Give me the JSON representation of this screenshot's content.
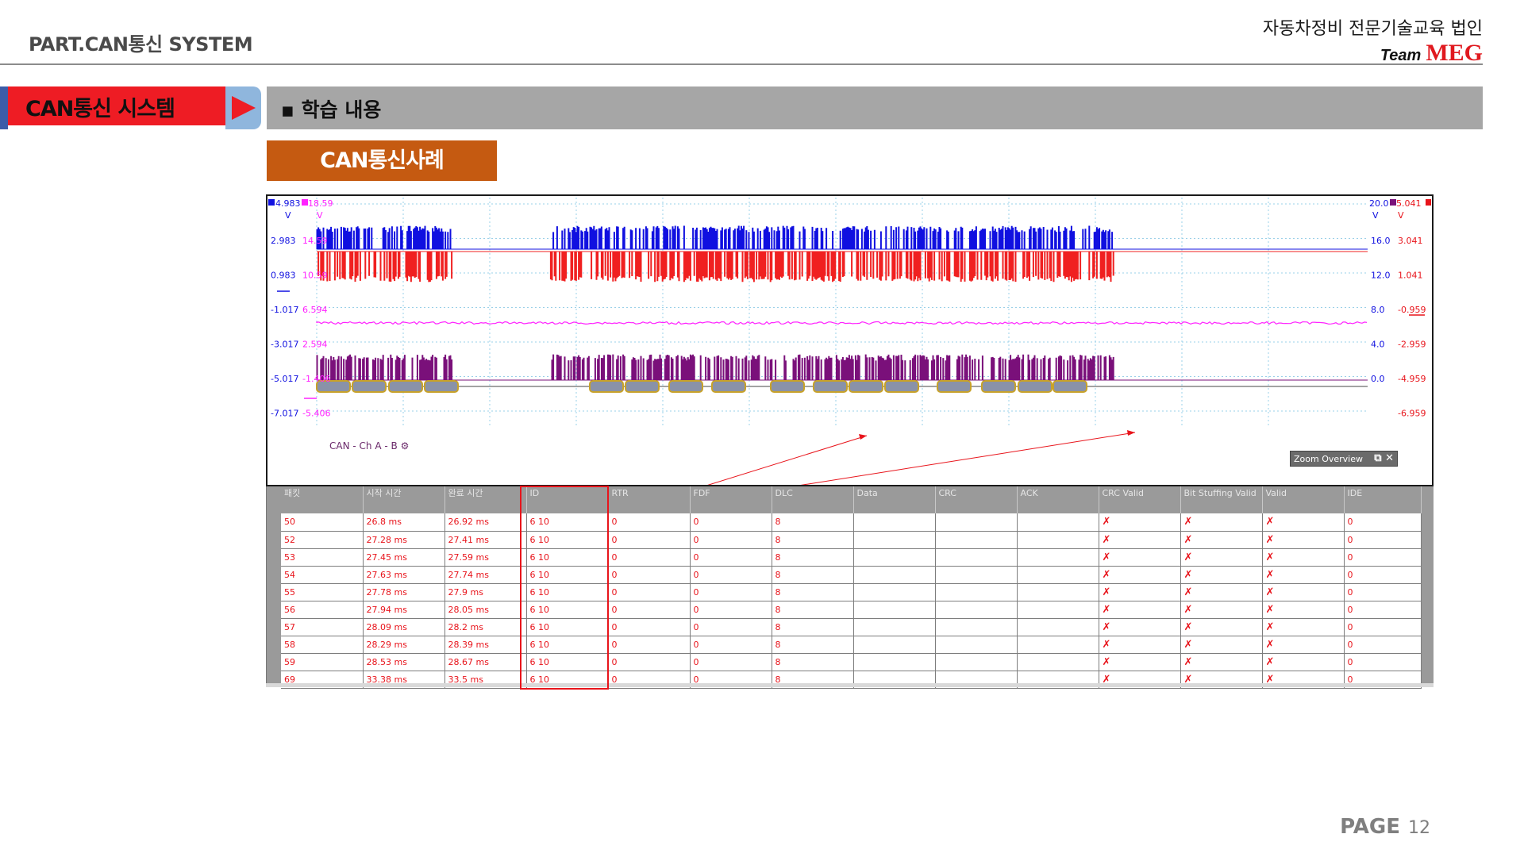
{
  "header": {
    "part": "PART.CAN통신 SYSTEM",
    "org": "자동차정비 전문기술교육 법인",
    "team_prefix": "Team",
    "team_brand": "MEG"
  },
  "band": {
    "section": "CAN통신 시스템",
    "topic": "▪ 학습 내용"
  },
  "subtitle": "CAN통신사례",
  "scope": {
    "left_axis_a_top": "4.983",
    "left_axis_b_top": "18.59",
    "left_unit": "V",
    "left_a": [
      "2.983",
      "0.983",
      "-1.017",
      "-3.017",
      "-5.017",
      "-7.017"
    ],
    "left_b": [
      "14.59",
      "10.59",
      "6.594",
      "2.594",
      "-1.406",
      "-5.406"
    ],
    "right_a_top": "20.0",
    "right_b_top": "5.041",
    "right_unit": "V",
    "right_a": [
      "16.0",
      "12.0",
      "8.0",
      "4.0",
      "0.0"
    ],
    "right_b": [
      "3.041",
      "1.041",
      "-0.959",
      "-2.959",
      "-4.959",
      "-6.959"
    ],
    "channel_label": "CAN - Ch A - B",
    "zoom_overview": "Zoom Overview",
    "colors": {
      "can_high": "#1010e0",
      "can_low": "#f02020",
      "diff": "#ff22ff",
      "decoded": "#7a107a",
      "grid": "#9ad0e8"
    }
  },
  "table": {
    "headers": [
      "패킷",
      "시작 시간",
      "완료 시간",
      "ID",
      "RTR",
      "FDF",
      "DLC",
      "Data",
      "CRC",
      "ACK",
      "CRC Valid",
      "Bit Stuffing Valid",
      "Valid",
      "IDE"
    ],
    "rows": [
      [
        "50",
        "26.8  ms",
        "26.92  ms",
        "6  10",
        "0",
        "0",
        "8",
        "",
        "",
        "",
        "✗",
        "✗",
        "✗",
        "0"
      ],
      [
        "52",
        "27.28  ms",
        "27.41  ms",
        "6  10",
        "0",
        "0",
        "8",
        "",
        "",
        "",
        "✗",
        "✗",
        "✗",
        "0"
      ],
      [
        "53",
        "27.45  ms",
        "27.59  ms",
        "6  10",
        "0",
        "0",
        "8",
        "",
        "",
        "",
        "✗",
        "✗",
        "✗",
        "0"
      ],
      [
        "54",
        "27.63  ms",
        "27.74  ms",
        "6  10",
        "0",
        "0",
        "8",
        "",
        "",
        "",
        "✗",
        "✗",
        "✗",
        "0"
      ],
      [
        "55",
        "27.78  ms",
        "27.9  ms",
        "6  10",
        "0",
        "0",
        "8",
        "",
        "",
        "",
        "✗",
        "✗",
        "✗",
        "0"
      ],
      [
        "56",
        "27.94  ms",
        "28.05  ms",
        "6  10",
        "0",
        "0",
        "8",
        "",
        "",
        "",
        "✗",
        "✗",
        "✗",
        "0"
      ],
      [
        "57",
        "28.09  ms",
        "28.2  ms",
        "6  10",
        "0",
        "0",
        "8",
        "",
        "",
        "",
        "✗",
        "✗",
        "✗",
        "0"
      ],
      [
        "58",
        "28.29  ms",
        "28.39  ms",
        "6  10",
        "0",
        "0",
        "8",
        "",
        "",
        "",
        "✗",
        "✗",
        "✗",
        "0"
      ],
      [
        "59",
        "28.53  ms",
        "28.67  ms",
        "6  10",
        "0",
        "0",
        "8",
        "",
        "",
        "",
        "✗",
        "✗",
        "✗",
        "0"
      ],
      [
        "69",
        "33.38  ms",
        "33.5  ms",
        "6  10",
        "0",
        "0",
        "8",
        "",
        "",
        "",
        "✗",
        "✗",
        "✗",
        "0"
      ]
    ]
  },
  "footer": {
    "page_label": "PAGE",
    "page_number": "12"
  }
}
